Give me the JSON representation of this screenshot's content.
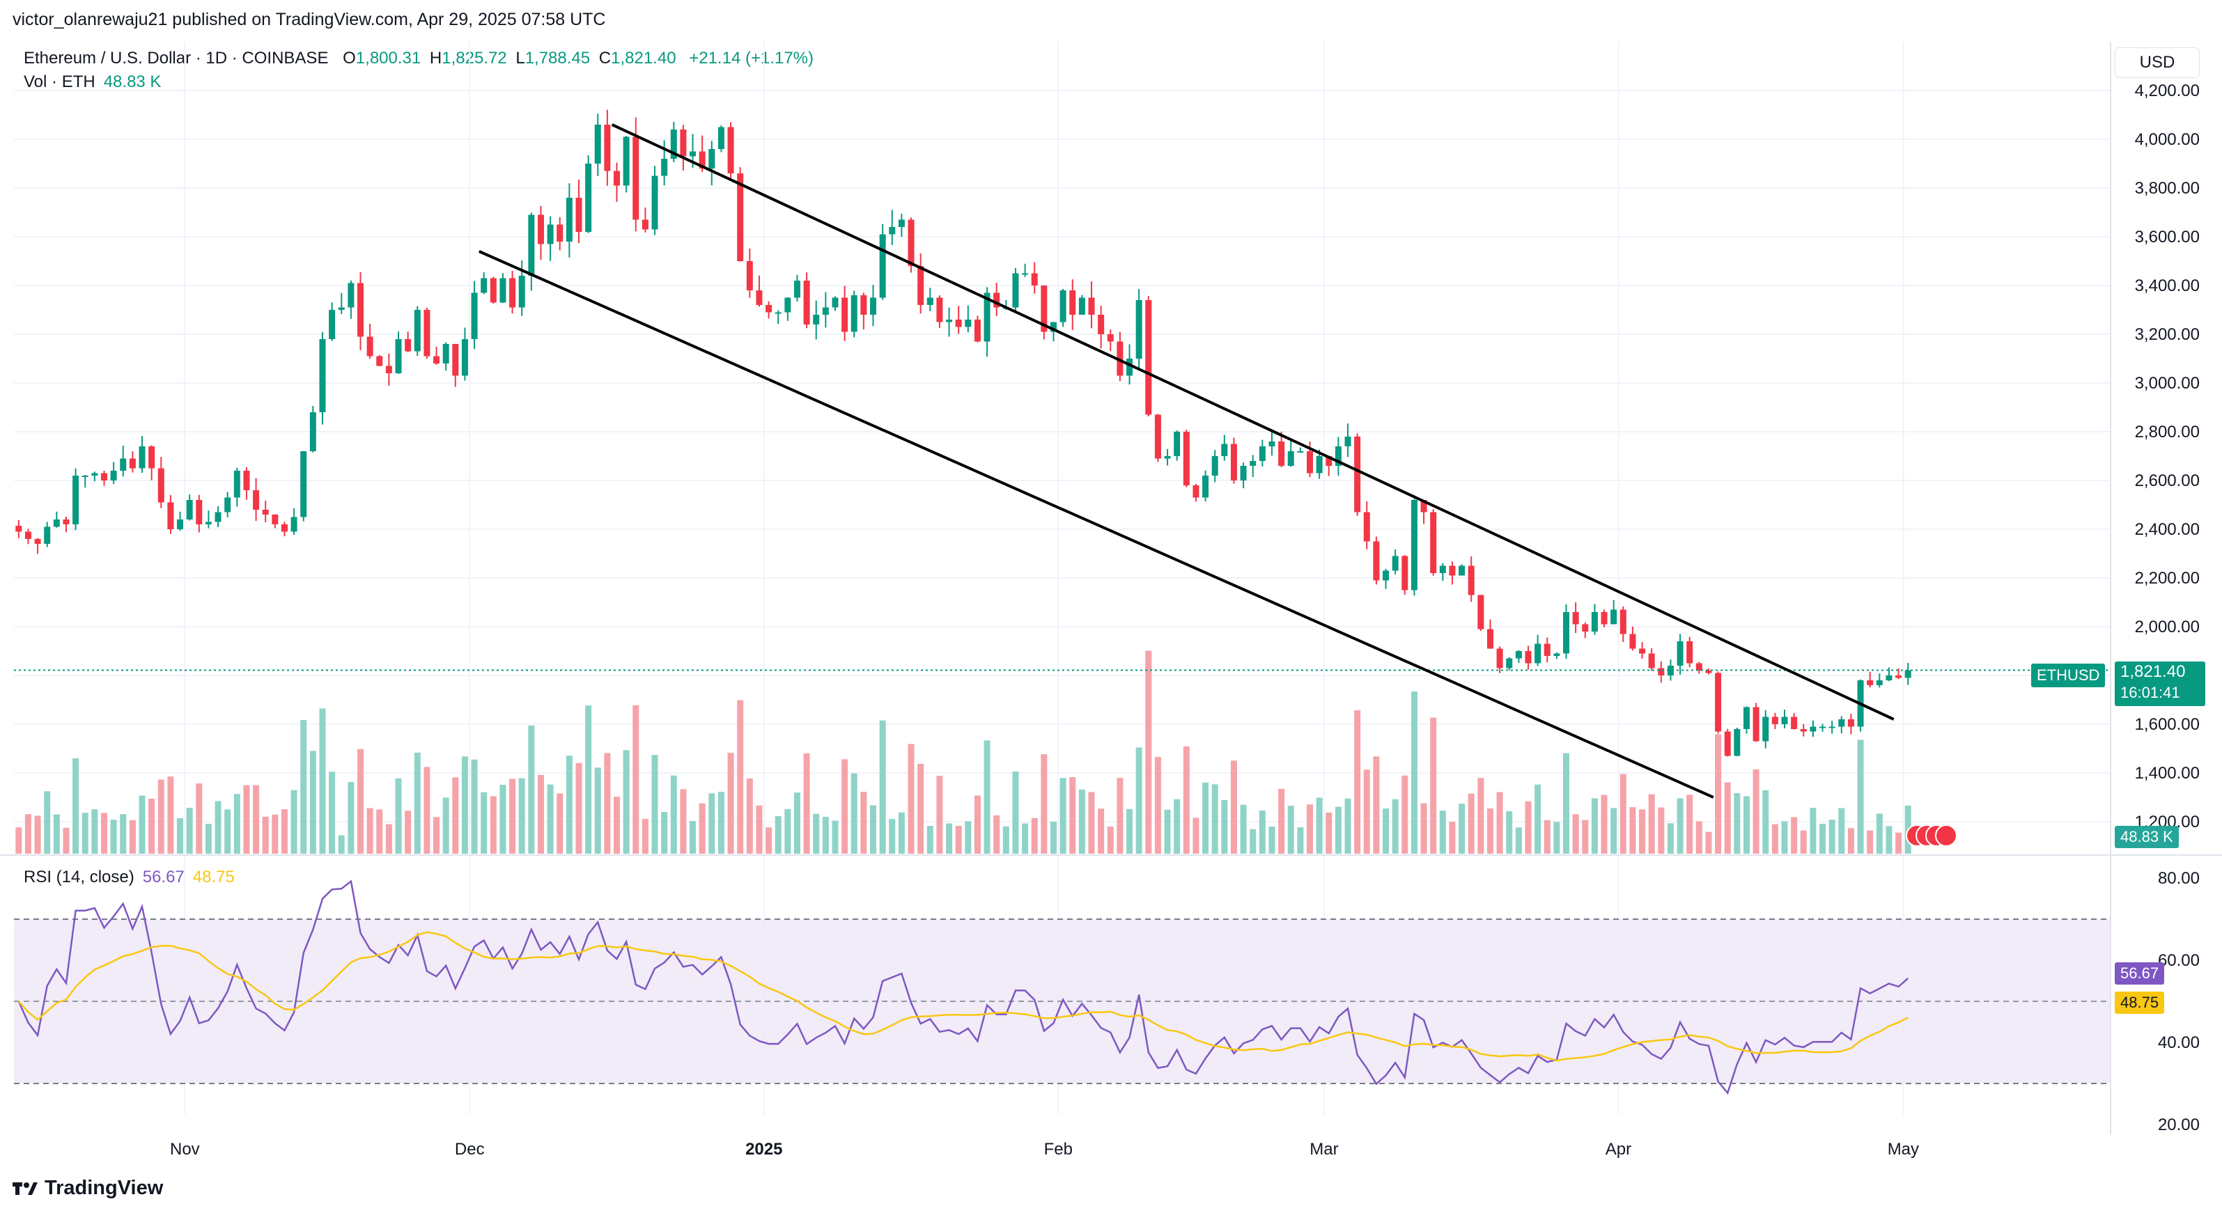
{
  "header": {
    "publisher": "victor_olanrewaju21 published on TradingView.com, Apr 29, 2025 07:58 UTC"
  },
  "legend": {
    "symbol": "Ethereum / U.S. Dollar · 1D · COINBASE",
    "open_label": "O",
    "open": "1,800.31",
    "high_label": "H",
    "high": "1,825.72",
    "low_label": "L",
    "low": "1,788.45",
    "close_label": "C",
    "close": "1,821.40",
    "change": "+21.14 (+1.17%)",
    "vol_label": "Vol · ETH",
    "vol_value": "48.83 K",
    "rsi_label": "RSI (14, close)",
    "rsi_value": "56.67",
    "rsi_ma_value": "48.75"
  },
  "price_scale": {
    "currency": "USD",
    "ticks": [
      "4,200.00",
      "4,000.00",
      "3,800.00",
      "3,600.00",
      "3,400.00",
      "3,200.00",
      "3,000.00",
      "2,800.00",
      "2,600.00",
      "2,400.00",
      "2,200.00",
      "2,000.00",
      "1,800.00",
      "1,600.00",
      "1,400.00",
      "1,200.00"
    ]
  },
  "rsi_scale": {
    "ticks": [
      "80.00",
      "60.00",
      "40.00",
      "20.00"
    ]
  },
  "badges": {
    "symbol_tag": "ETHUSD",
    "last_price": "1,821.40",
    "countdown": "16:01:41",
    "volume": "48.83 K",
    "rsi": "56.67",
    "rsi_ma": "48.75"
  },
  "time_axis": {
    "labels": [
      "Nov",
      "Dec",
      "2025",
      "Feb",
      "Mar",
      "Apr",
      "May"
    ]
  },
  "brand": {
    "name": "TradingView"
  },
  "colors": {
    "up": "#089981",
    "down": "#f23645",
    "rsi": "#7e57c2",
    "rsi_ma": "#f9c712",
    "vol_up": "#8fd3c8",
    "vol_down": "#f5a3a9",
    "rsi_band": "#ede7f6"
  },
  "chart_data": [
    {
      "type": "candlestick",
      "title": "Ethereum / U.S. Dollar · 1D · COINBASE",
      "x_start": "2024-10-14",
      "x_end": "2025-04-29",
      "x_interval": "1D",
      "ylim": [
        1150,
        4250
      ],
      "close_approx": [
        2390,
        2360,
        2340,
        2410,
        2440,
        2420,
        2620,
        2620,
        2630,
        2600,
        2640,
        2690,
        2650,
        2740,
        2650,
        2510,
        2400,
        2440,
        2520,
        2420,
        2430,
        2470,
        2530,
        2640,
        2560,
        2480,
        2460,
        2420,
        2390,
        2450,
        2720,
        2880,
        3180,
        3300,
        3310,
        3410,
        3190,
        3110,
        3070,
        3040,
        3180,
        3130,
        3300,
        3110,
        3080,
        3160,
        3030,
        3180,
        3370,
        3430,
        3330,
        3430,
        3310,
        3440,
        3690,
        3570,
        3650,
        3580,
        3760,
        3620,
        3900,
        4060,
        3870,
        3810,
        4010,
        3670,
        3630,
        3850,
        3920,
        4040,
        3930,
        3950,
        3880,
        3960,
        4050,
        3860,
        3500,
        3380,
        3320,
        3290,
        3290,
        3350,
        3420,
        3240,
        3280,
        3310,
        3350,
        3210,
        3360,
        3280,
        3350,
        3610,
        3640,
        3670,
        3480,
        3320,
        3350,
        3250,
        3260,
        3230,
        3260,
        3170,
        3370,
        3310,
        3310,
        3450,
        3450,
        3400,
        3210,
        3250,
        3380,
        3280,
        3350,
        3280,
        3200,
        3170,
        3030,
        3100,
        3340,
        2870,
        2690,
        2700,
        2800,
        2580,
        2530,
        2620,
        2700,
        2750,
        2600,
        2660,
        2680,
        2740,
        2760,
        2660,
        2720,
        2720,
        2630,
        2700,
        2660,
        2740,
        2780,
        2470,
        2350,
        2190,
        2230,
        2290,
        2150,
        2520,
        2470,
        2220,
        2250,
        2210,
        2250,
        2130,
        1990,
        1910,
        1830,
        1870,
        1900,
        1850,
        1930,
        1880,
        1890,
        2060,
        2010,
        1980,
        2060,
        2010,
        2070,
        1970,
        1910,
        1890,
        1830,
        1800,
        1840,
        1940,
        1850,
        1820,
        1810,
        1570,
        1470,
        1580,
        1670,
        1530,
        1630,
        1600,
        1630,
        1580,
        1570,
        1590,
        1590,
        1590,
        1620,
        1590,
        1780,
        1760,
        1780,
        1800,
        1790,
        1821
      ],
      "volume_note": "Daily volume bars at bottom of price pane; largest spike around Feb 3 2025.",
      "trendlines": [
        {
          "name": "upper channel",
          "from": [
            "2024-12-16",
            4060
          ],
          "to": [
            "2025-04-30",
            1620
          ]
        },
        {
          "name": "lower channel",
          "from": [
            "2024-12-02",
            3540
          ],
          "to": [
            "2025-04-11",
            1300
          ]
        }
      ],
      "last_price": 1821.4
    },
    {
      "type": "line",
      "title": "RSI (14, close)",
      "ylim": [
        20,
        80
      ],
      "band": [
        30,
        70
      ],
      "midline": 50,
      "series": [
        {
          "name": "RSI",
          "last": 56.67
        },
        {
          "name": "RSI MA",
          "last": 48.75
        }
      ]
    }
  ]
}
